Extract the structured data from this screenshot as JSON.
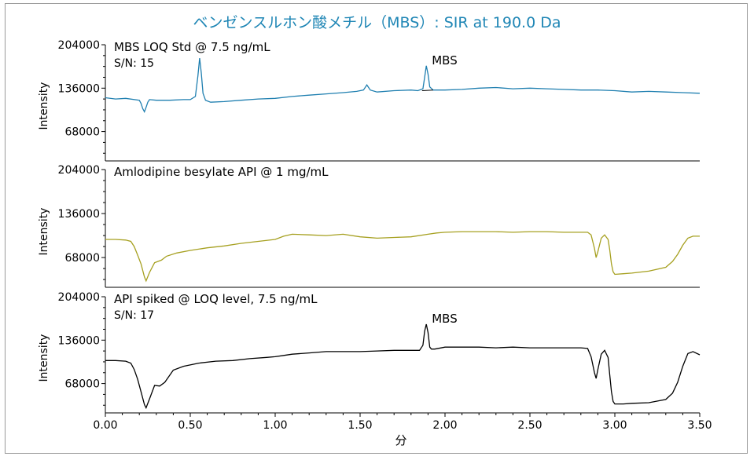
{
  "title": "ベンゼンスルホン酸メチル（MBS）: SIR at 190.0 Da",
  "colors": {
    "title": "#1f86b5",
    "axis": "#000000",
    "frame": "#9a9a9a"
  },
  "chart_data": [
    {
      "type": "line",
      "label": "MBS LOQ Std @ 7.5 ng/mL",
      "sn_text": "S/N: 15",
      "peak_label": "MBS",
      "ylabel": "Intensity",
      "xlabel": "",
      "xlim": [
        0.0,
        3.5
      ],
      "ylim": [
        22000,
        204000
      ],
      "yticks": [
        68000,
        136000,
        204000
      ],
      "ytick_labels": [
        "68000",
        "136000",
        "204000"
      ],
      "color": "#1f7fb0",
      "series": [
        {
          "x": [
            0.0,
            0.06,
            0.12,
            0.2,
            0.21,
            0.22,
            0.23,
            0.24,
            0.25,
            0.26,
            0.3,
            0.38,
            0.46,
            0.5,
            0.53,
            0.545,
            0.555,
            0.565,
            0.575,
            0.59,
            0.62,
            0.7,
            0.8,
            0.9,
            1.0,
            1.1,
            1.2,
            1.3,
            1.4,
            1.48,
            1.52,
            1.54,
            1.56,
            1.6,
            1.7,
            1.8,
            1.84,
            1.87,
            1.88,
            1.89,
            1.9,
            1.91,
            1.93,
            1.97,
            2.0,
            2.1,
            2.2,
            2.3,
            2.4,
            2.5,
            2.6,
            2.7,
            2.8,
            2.9,
            3.0,
            3.1,
            3.2,
            3.3,
            3.4,
            3.5
          ],
          "y": [
            121000,
            119000,
            120000,
            117000,
            112000,
            104000,
            99000,
            106000,
            114000,
            118000,
            117000,
            117000,
            118000,
            118000,
            123000,
            155000,
            183000,
            160000,
            128000,
            117000,
            114000,
            115000,
            117000,
            119000,
            120000,
            123000,
            125000,
            127000,
            129000,
            131000,
            133000,
            141000,
            133000,
            130000,
            132000,
            133000,
            132000,
            135000,
            153000,
            171000,
            158000,
            138000,
            133000,
            133000,
            133000,
            134000,
            136000,
            137000,
            135000,
            136000,
            135000,
            134000,
            133000,
            133000,
            132000,
            130000,
            131000,
            130000,
            129000,
            128000
          ]
        }
      ]
    },
    {
      "type": "line",
      "label": "Amlodipine besylate API @ 1 mg/mL",
      "ylabel": "Intensity",
      "xlabel": "",
      "xlim": [
        0.0,
        3.5
      ],
      "ylim": [
        22000,
        204000
      ],
      "yticks": [
        68000,
        136000,
        204000
      ],
      "ytick_labels": [
        "68000",
        "136000",
        "204000"
      ],
      "color": "#a6a020",
      "series": [
        {
          "x": [
            0.0,
            0.06,
            0.12,
            0.15,
            0.17,
            0.19,
            0.21,
            0.23,
            0.24,
            0.26,
            0.29,
            0.33,
            0.36,
            0.42,
            0.5,
            0.6,
            0.7,
            0.8,
            0.9,
            1.0,
            1.05,
            1.1,
            1.2,
            1.3,
            1.4,
            1.5,
            1.6,
            1.7,
            1.8,
            1.9,
            1.95,
            2.0,
            2.1,
            2.2,
            2.3,
            2.4,
            2.5,
            2.6,
            2.7,
            2.8,
            2.84,
            2.86,
            2.88,
            2.89,
            2.9,
            2.92,
            2.94,
            2.96,
            2.97,
            2.98,
            2.99,
            3.0,
            3.05,
            3.1,
            3.2,
            3.3,
            3.34,
            3.37,
            3.4,
            3.43,
            3.46,
            3.5
          ],
          "y": [
            96000,
            96000,
            95000,
            93000,
            85000,
            72000,
            58000,
            38000,
            32000,
            45000,
            60000,
            64000,
            70000,
            75000,
            79000,
            83000,
            86000,
            90000,
            93000,
            96000,
            101000,
            104000,
            103000,
            102000,
            104000,
            100000,
            98000,
            99000,
            100000,
            104000,
            106000,
            107000,
            108000,
            108000,
            108000,
            107000,
            108000,
            108000,
            107000,
            107000,
            107000,
            103000,
            82000,
            68000,
            77000,
            98000,
            103000,
            96000,
            80000,
            58000,
            46000,
            42000,
            43000,
            44000,
            47000,
            53000,
            62000,
            73000,
            87000,
            98000,
            101000,
            101000
          ]
        }
      ]
    },
    {
      "type": "line",
      "label": "API spiked @ LOQ level, 7.5 ng/mL",
      "sn_text": "S/N: 17",
      "peak_label": "MBS",
      "ylabel": "Intensity",
      "xlabel": "分",
      "xlim": [
        0.0,
        3.5
      ],
      "ylim": [
        22000,
        204000
      ],
      "yticks": [
        68000,
        136000,
        204000
      ],
      "ytick_labels": [
        "68000",
        "136000",
        "204000"
      ],
      "xticks": [
        0.0,
        0.5,
        1.0,
        1.5,
        2.0,
        2.5,
        3.0,
        3.5
      ],
      "xtick_labels": [
        "0.00",
        "0.50",
        "1.00",
        "1.50",
        "2.00",
        "2.50",
        "3.00",
        "3.50"
      ],
      "color": "#000000",
      "series": [
        {
          "x": [
            0.0,
            0.06,
            0.12,
            0.15,
            0.17,
            0.19,
            0.21,
            0.23,
            0.24,
            0.26,
            0.29,
            0.32,
            0.35,
            0.4,
            0.46,
            0.55,
            0.65,
            0.75,
            0.85,
            0.95,
            1.0,
            1.05,
            1.1,
            1.2,
            1.3,
            1.4,
            1.5,
            1.6,
            1.7,
            1.8,
            1.85,
            1.87,
            1.88,
            1.89,
            1.9,
            1.91,
            1.92,
            1.94,
            2.0,
            2.1,
            2.2,
            2.3,
            2.4,
            2.5,
            2.6,
            2.7,
            2.8,
            2.84,
            2.86,
            2.88,
            2.89,
            2.9,
            2.92,
            2.94,
            2.96,
            2.97,
            2.98,
            2.99,
            3.0,
            3.05,
            3.1,
            3.2,
            3.3,
            3.34,
            3.37,
            3.4,
            3.43,
            3.46,
            3.5
          ],
          "y": [
            104000,
            104000,
            103000,
            100000,
            90000,
            75000,
            55000,
            35000,
            30000,
            44000,
            65000,
            64000,
            70000,
            89000,
            95000,
            100000,
            103000,
            104000,
            107000,
            109000,
            110000,
            112000,
            114000,
            116000,
            118000,
            118000,
            118000,
            119000,
            120000,
            120000,
            120000,
            128000,
            150000,
            161000,
            148000,
            125000,
            122000,
            122000,
            125000,
            125000,
            125000,
            124000,
            125000,
            124000,
            124000,
            124000,
            124000,
            123000,
            110000,
            85000,
            76000,
            90000,
            114000,
            120000,
            109000,
            82000,
            55000,
            40000,
            36000,
            36000,
            37000,
            38000,
            43000,
            53000,
            70000,
            95000,
            115000,
            118000,
            113000
          ]
        }
      ]
    }
  ]
}
